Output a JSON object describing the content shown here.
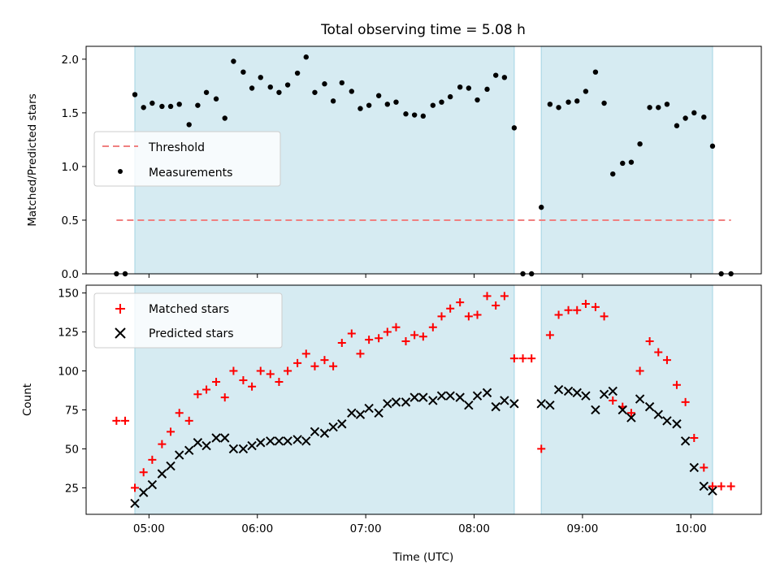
{
  "chart_data": {
    "title": "Total observing time = 5.08 h",
    "xlabel": "Time (UTC)",
    "x_ticks": [
      "05:00",
      "06:00",
      "07:00",
      "08:00",
      "09:00",
      "10:00"
    ],
    "x_tick_hours": [
      5,
      6,
      7,
      8,
      9,
      10
    ],
    "xlim": [
      4.42,
      10.65
    ],
    "observing_windows": [
      [
        4.87,
        8.37
      ],
      [
        8.62,
        10.2
      ]
    ],
    "colors": {
      "window_fill": "#add8e6",
      "threshold": "#f08080",
      "matched": "#ff0000",
      "predicted": "#000000",
      "measurements": "#000000"
    },
    "panels": [
      {
        "type": "scatter",
        "ylabel": "Matched/Predicted stars",
        "ylim": [
          0,
          2.12
        ],
        "y_ticks": [
          "0.0",
          "0.5",
          "1.0",
          "1.5",
          "2.0"
        ],
        "y_tick_values": [
          0,
          0.5,
          1.0,
          1.5,
          2.0
        ],
        "legend": {
          "position": "center-left",
          "entries": [
            "Threshold",
            "Measurements"
          ]
        },
        "threshold": {
          "name": "Threshold",
          "value": 0.5,
          "x_range": [
            4.7,
            10.37
          ]
        },
        "series": [
          {
            "name": "Measurements",
            "x": [
              4.7,
              4.78,
              4.87,
              4.95,
              5.03,
              5.12,
              5.2,
              5.28,
              5.37,
              5.45,
              5.53,
              5.62,
              5.7,
              5.78,
              5.87,
              5.95,
              6.03,
              6.12,
              6.2,
              6.28,
              6.37,
              6.45,
              6.53,
              6.62,
              6.7,
              6.78,
              6.87,
              6.95,
              7.03,
              7.12,
              7.2,
              7.28,
              7.37,
              7.45,
              7.53,
              7.62,
              7.7,
              7.78,
              7.87,
              7.95,
              8.03,
              8.12,
              8.2,
              8.28,
              8.37,
              8.45,
              8.53,
              8.62,
              8.7,
              8.78,
              8.87,
              8.95,
              9.03,
              9.12,
              9.2,
              9.28,
              9.37,
              9.45,
              9.53,
              9.62,
              9.7,
              9.78,
              9.87,
              9.95,
              10.03,
              10.12,
              10.2,
              10.28,
              10.37
            ],
            "y": [
              0,
              0,
              1.67,
              1.55,
              1.59,
              1.56,
              1.56,
              1.58,
              1.39,
              1.57,
              1.69,
              1.63,
              1.45,
              1.98,
              1.88,
              1.73,
              1.83,
              1.74,
              1.69,
              1.76,
              1.87,
              2.02,
              1.69,
              1.77,
              1.61,
              1.78,
              1.7,
              1.54,
              1.57,
              1.66,
              1.58,
              1.6,
              1.49,
              1.48,
              1.47,
              1.57,
              1.6,
              1.65,
              1.74,
              1.73,
              1.62,
              1.72,
              1.85,
              1.83,
              1.36,
              0,
              0,
              0.62,
              1.58,
              1.55,
              1.6,
              1.61,
              1.7,
              1.88,
              1.59,
              0.93,
              1.03,
              1.04,
              1.21,
              1.55,
              1.55,
              1.58,
              1.38,
              1.45,
              1.5,
              1.46,
              1.19,
              0,
              0
            ]
          }
        ]
      },
      {
        "type": "scatter",
        "ylabel": "Count",
        "ylim": [
          8,
          155
        ],
        "y_ticks": [
          "25",
          "50",
          "75",
          "100",
          "125",
          "150"
        ],
        "y_tick_values": [
          25,
          50,
          75,
          100,
          125,
          150
        ],
        "legend": {
          "position": "top-left",
          "entries": [
            "Matched stars",
            "Predicted stars"
          ]
        },
        "series": [
          {
            "name": "Matched stars",
            "marker": "+",
            "x": [
              4.7,
              4.78,
              4.87,
              4.95,
              5.03,
              5.12,
              5.2,
              5.28,
              5.37,
              5.45,
              5.53,
              5.62,
              5.7,
              5.78,
              5.87,
              5.95,
              6.03,
              6.12,
              6.2,
              6.28,
              6.37,
              6.45,
              6.53,
              6.62,
              6.7,
              6.78,
              6.87,
              6.95,
              7.03,
              7.12,
              7.2,
              7.28,
              7.37,
              7.45,
              7.53,
              7.62,
              7.7,
              7.78,
              7.87,
              7.95,
              8.03,
              8.12,
              8.2,
              8.28,
              8.37,
              8.45,
              8.53,
              8.62,
              8.7,
              8.78,
              8.87,
              8.95,
              9.03,
              9.12,
              9.2,
              9.28,
              9.37,
              9.45,
              9.53,
              9.62,
              9.7,
              9.78,
              9.87,
              9.95,
              10.03,
              10.12,
              10.2,
              10.28,
              10.37
            ],
            "y": [
              68,
              68,
              25,
              35,
              43,
              53,
              61,
              73,
              68,
              85,
              88,
              93,
              83,
              100,
              94,
              90,
              100,
              98,
              93,
              100,
              105,
              111,
              103,
              107,
              103,
              118,
              124,
              111,
              120,
              121,
              125,
              128,
              119,
              123,
              122,
              128,
              135,
              140,
              144,
              135,
              136,
              148,
              142,
              148,
              108,
              108,
              108,
              50,
              123,
              136,
              139,
              139,
              143,
              141,
              135,
              81,
              77,
              73,
              100,
              119,
              112,
              107,
              91,
              80,
              57,
              38,
              26,
              26,
              26
            ]
          },
          {
            "name": "Predicted stars",
            "marker": "x",
            "x": [
              4.87,
              4.95,
              5.03,
              5.12,
              5.2,
              5.28,
              5.37,
              5.45,
              5.53,
              5.62,
              5.7,
              5.78,
              5.87,
              5.95,
              6.03,
              6.12,
              6.2,
              6.28,
              6.37,
              6.45,
              6.53,
              6.62,
              6.7,
              6.78,
              6.87,
              6.95,
              7.03,
              7.12,
              7.2,
              7.28,
              7.37,
              7.45,
              7.53,
              7.62,
              7.7,
              7.78,
              7.87,
              7.95,
              8.03,
              8.12,
              8.2,
              8.28,
              8.37,
              8.62,
              8.7,
              8.78,
              8.87,
              8.95,
              9.03,
              9.12,
              9.2,
              9.28,
              9.37,
              9.45,
              9.53,
              9.62,
              9.7,
              9.78,
              9.87,
              9.95,
              10.03,
              10.12,
              10.2
            ],
            "y": [
              15,
              22,
              27,
              34,
              39,
              46,
              49,
              54,
              52,
              57,
              57,
              50,
              50,
              52,
              54,
              55,
              55,
              55,
              56,
              55,
              61,
              60,
              64,
              66,
              73,
              72,
              76,
              73,
              79,
              80,
              80,
              83,
              83,
              81,
              84,
              84,
              83,
              78,
              84,
              86,
              77,
              81,
              79,
              79,
              78,
              88,
              87,
              86,
              84,
              75,
              85,
              87,
              75,
              70,
              82,
              77,
              72,
              68,
              66,
              55,
              38,
              26,
              23
            ]
          }
        ]
      }
    ]
  }
}
